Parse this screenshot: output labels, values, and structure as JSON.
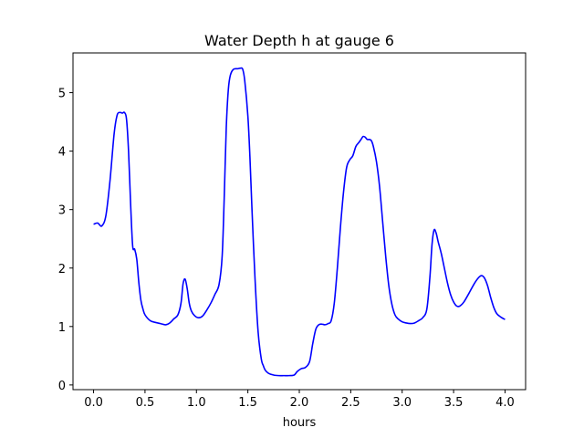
{
  "chart_data": {
    "type": "line",
    "title": "Water Depth h at gauge 6",
    "xlabel": "hours",
    "ylabel": "",
    "xlim": [
      -0.2,
      4.2
    ],
    "ylim": [
      -0.08,
      5.68
    ],
    "xticks": [
      0.0,
      0.5,
      1.0,
      1.5,
      2.0,
      2.5,
      3.0,
      3.5,
      4.0
    ],
    "xtick_labels": [
      "0.0",
      "0.5",
      "1.0",
      "1.5",
      "2.0",
      "2.5",
      "3.0",
      "3.5",
      "4.0"
    ],
    "yticks": [
      0,
      1,
      2,
      3,
      4,
      5
    ],
    "ytick_labels": [
      "0",
      "1",
      "2",
      "3",
      "4",
      "5"
    ],
    "grid": false,
    "series": [
      {
        "color": "#0000ff",
        "x": [
          0.0,
          0.04,
          0.08,
          0.12,
          0.16,
          0.2,
          0.23,
          0.26,
          0.28,
          0.3,
          0.32,
          0.34,
          0.36,
          0.38,
          0.4,
          0.42,
          0.44,
          0.46,
          0.48,
          0.5,
          0.55,
          0.6,
          0.65,
          0.7,
          0.74,
          0.78,
          0.82,
          0.85,
          0.87,
          0.89,
          0.91,
          0.93,
          0.95,
          0.98,
          1.02,
          1.06,
          1.1,
          1.14,
          1.18,
          1.22,
          1.25,
          1.27,
          1.29,
          1.31,
          1.33,
          1.36,
          1.4,
          1.43,
          1.45,
          1.47,
          1.5,
          1.52,
          1.54,
          1.57,
          1.6,
          1.63,
          1.65,
          1.67,
          1.7,
          1.75,
          1.8,
          1.85,
          1.9,
          1.95,
          1.98,
          2.02,
          2.06,
          2.1,
          2.13,
          2.16,
          2.19,
          2.22,
          2.25,
          2.28,
          2.31,
          2.34,
          2.37,
          2.4,
          2.43,
          2.46,
          2.49,
          2.52,
          2.55,
          2.58,
          2.6,
          2.62,
          2.64,
          2.66,
          2.68,
          2.7,
          2.72,
          2.75,
          2.78,
          2.81,
          2.84,
          2.87,
          2.9,
          2.93,
          2.96,
          3.0,
          3.04,
          3.08,
          3.12,
          3.16,
          3.2,
          3.24,
          3.27,
          3.29,
          3.31,
          3.33,
          3.35,
          3.38,
          3.41,
          3.44,
          3.47,
          3.5,
          3.53,
          3.56,
          3.6,
          3.65,
          3.7,
          3.74,
          3.77,
          3.8,
          3.83,
          3.86,
          3.89,
          3.92,
          3.96,
          4.0
        ],
        "y": [
          2.75,
          2.77,
          2.72,
          2.9,
          3.5,
          4.3,
          4.62,
          4.66,
          4.65,
          4.66,
          4.55,
          4.0,
          3.1,
          2.38,
          2.32,
          2.15,
          1.75,
          1.45,
          1.3,
          1.2,
          1.1,
          1.07,
          1.05,
          1.03,
          1.06,
          1.13,
          1.2,
          1.4,
          1.73,
          1.81,
          1.65,
          1.4,
          1.27,
          1.19,
          1.15,
          1.18,
          1.28,
          1.4,
          1.55,
          1.72,
          2.2,
          3.2,
          4.4,
          5.05,
          5.3,
          5.4,
          5.41,
          5.42,
          5.4,
          5.2,
          4.6,
          3.9,
          3.0,
          1.8,
          0.9,
          0.45,
          0.33,
          0.25,
          0.2,
          0.17,
          0.16,
          0.16,
          0.16,
          0.17,
          0.23,
          0.28,
          0.3,
          0.4,
          0.7,
          0.95,
          1.03,
          1.04,
          1.03,
          1.05,
          1.1,
          1.4,
          2.0,
          2.7,
          3.3,
          3.72,
          3.85,
          3.92,
          4.08,
          4.15,
          4.2,
          4.25,
          4.24,
          4.2,
          4.2,
          4.18,
          4.08,
          3.82,
          3.4,
          2.8,
          2.2,
          1.7,
          1.38,
          1.2,
          1.13,
          1.08,
          1.06,
          1.05,
          1.06,
          1.1,
          1.15,
          1.3,
          1.85,
          2.4,
          2.65,
          2.6,
          2.45,
          2.25,
          2.0,
          1.75,
          1.55,
          1.42,
          1.35,
          1.35,
          1.42,
          1.57,
          1.73,
          1.83,
          1.87,
          1.83,
          1.7,
          1.5,
          1.33,
          1.22,
          1.16,
          1.12
        ]
      }
    ]
  }
}
